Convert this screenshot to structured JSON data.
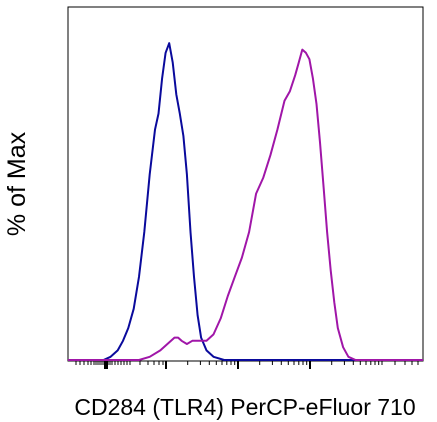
{
  "chart_data": {
    "type": "line",
    "title": "",
    "xlabel": "CD284 (TLR4) PerCP-eFluor 710",
    "ylabel": "% of Max",
    "x_scale": "log (biexponential)",
    "x_tick_labels": [],
    "y_tick_labels": [],
    "xlim": [
      0,
      1
    ],
    "ylim": [
      0,
      100
    ],
    "grid": false,
    "legend": "none",
    "series": [
      {
        "color": "#0a0a9c",
        "x": [
          0.0,
          0.1,
          0.12,
          0.14,
          0.155,
          0.17,
          0.185,
          0.2,
          0.215,
          0.23,
          0.245,
          0.255,
          0.265,
          0.275,
          0.285,
          0.295,
          0.305,
          0.315,
          0.325,
          0.335,
          0.345,
          0.355,
          0.365,
          0.375,
          0.39,
          0.41,
          0.44,
          1.0
        ],
        "y": [
          0,
          0,
          1,
          3,
          6,
          10,
          16,
          26,
          40,
          58,
          72,
          77,
          88,
          96,
          99,
          93,
          83,
          77,
          70,
          58,
          40,
          26,
          14,
          7,
          3,
          1,
          0,
          0
        ]
      },
      {
        "color": "#a016a8",
        "x": [
          0.0,
          0.2,
          0.23,
          0.26,
          0.28,
          0.3,
          0.31,
          0.32,
          0.335,
          0.35,
          0.37,
          0.39,
          0.41,
          0.43,
          0.45,
          0.47,
          0.49,
          0.51,
          0.53,
          0.55,
          0.57,
          0.59,
          0.61,
          0.625,
          0.64,
          0.65,
          0.66,
          0.67,
          0.68,
          0.69,
          0.7,
          0.71,
          0.72,
          0.73,
          0.74,
          0.75,
          0.76,
          0.775,
          0.79,
          0.81,
          0.83,
          0.86,
          1.0
        ],
        "y": [
          0,
          0,
          1,
          3,
          5,
          7,
          7,
          6,
          5,
          6,
          6,
          6,
          8,
          13,
          20,
          26,
          32,
          40,
          52,
          57,
          64,
          72,
          81,
          84,
          89,
          93,
          97,
          96,
          94,
          88,
          80,
          68,
          54,
          40,
          28,
          18,
          10,
          4,
          1,
          0,
          0,
          0,
          0
        ]
      }
    ]
  }
}
